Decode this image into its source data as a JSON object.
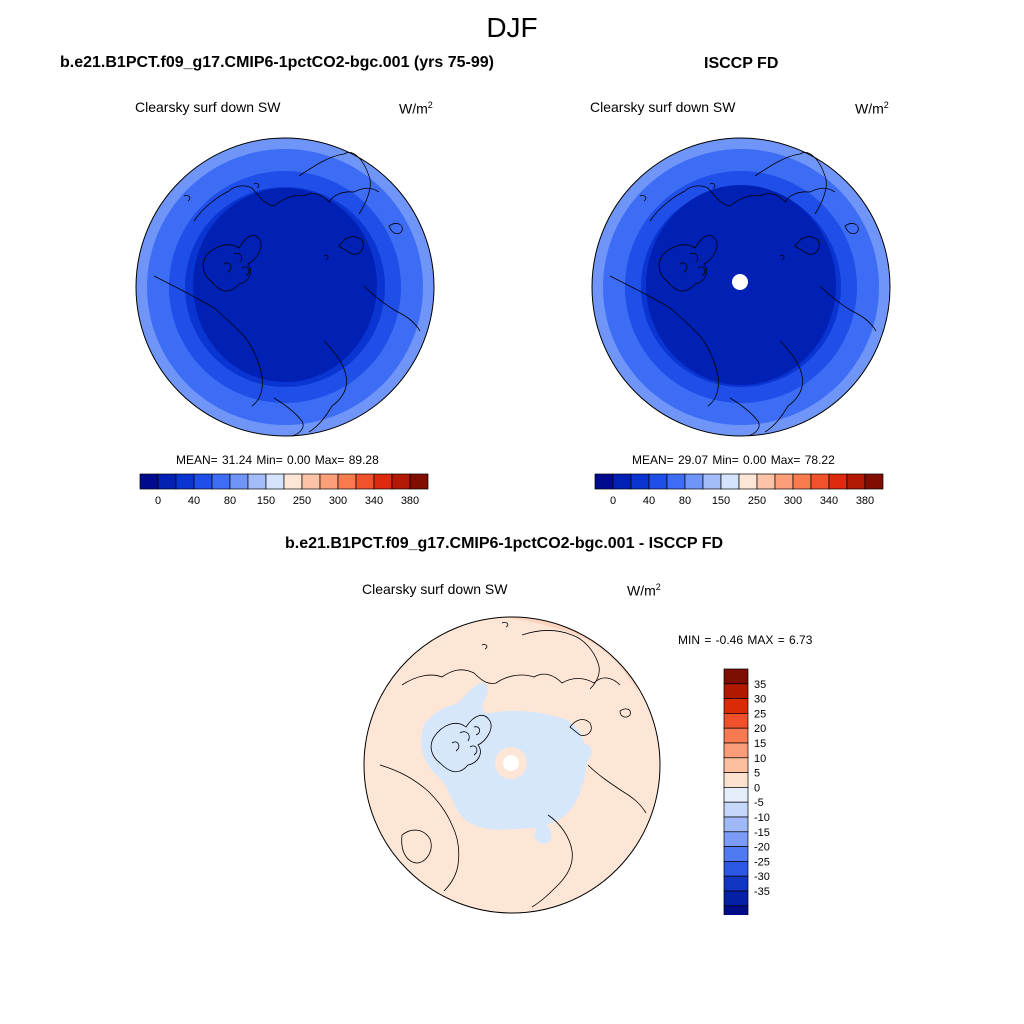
{
  "season": "DJF",
  "panels": [
    {
      "id": "model",
      "title": "b.e21.B1PCT.f09_g17.CMIP6-1pctCO2-bgc.001 (yrs 75-99)",
      "variable": "Clearsky surf down SW",
      "units": "W/m",
      "units_sup": "2",
      "stats": "MEAN=  31.24  Min=   0.00  Max=  89.28",
      "mean": 31.24,
      "min": 0.0,
      "max": 89.28
    },
    {
      "id": "obs",
      "title": "ISCCP FD",
      "variable": "Clearsky surf down SW",
      "units": "W/m",
      "units_sup": "2",
      "stats": "MEAN=  29.07  Min=   0.00  Max=  78.22",
      "mean": 29.07,
      "min": 0.0,
      "max": 78.22
    },
    {
      "id": "diff",
      "title": "b.e21.B1PCT.f09_g17.CMIP6-1pctCO2-bgc.001 - ISCCP FD",
      "variable": "Clearsky surf down SW",
      "units": "W/m",
      "units_sup": "2",
      "stats": "MIN =  -0.46 MAX =   6.73",
      "min": -0.46,
      "max": 6.73
    }
  ],
  "colorbar_top": {
    "colors": [
      "#000a8c",
      "#0021b4",
      "#0a35d2",
      "#1f4fe8",
      "#3d6df5",
      "#6f95f8",
      "#a3bcfa",
      "#d6e3fd",
      "#fde6d6",
      "#fcc3a6",
      "#fb9f79",
      "#f97a4d",
      "#f0522b",
      "#de2b0f",
      "#b31904",
      "#800d00"
    ],
    "tick_labels": [
      "0",
      "40",
      "80",
      "150",
      "250",
      "300",
      "340",
      "380"
    ]
  },
  "colorbar_diff": {
    "colors_top_to_bottom": [
      "#7d0d00",
      "#b01900",
      "#da2b06",
      "#f0502a",
      "#f87a50",
      "#fb9c78",
      "#fcbfa0",
      "#fde3cf",
      "#e6eefb",
      "#c7d7fa",
      "#9fb8f8",
      "#7a9bf6",
      "#4f7af1",
      "#2b57e3",
      "#1236c4",
      "#0420a6",
      "#000c87"
    ],
    "tick_labels": [
      "35",
      "30",
      "25",
      "20",
      "15",
      "10",
      "5",
      "0",
      "-5",
      "-10",
      "-15",
      "-20",
      "-25",
      "-30",
      "-35"
    ]
  },
  "map_colors": {
    "ring_outer": "#6f95f8",
    "ring_2": "#3d6df5",
    "ring_3": "#1f4fe8",
    "ring_4": "#0a35d2",
    "core": "#0021b4",
    "pole_hole": "#ffffff",
    "diff_background": "#fde6d6",
    "diff_negative": "#d6e6fb",
    "diff_positive": "#fbd2bd"
  }
}
